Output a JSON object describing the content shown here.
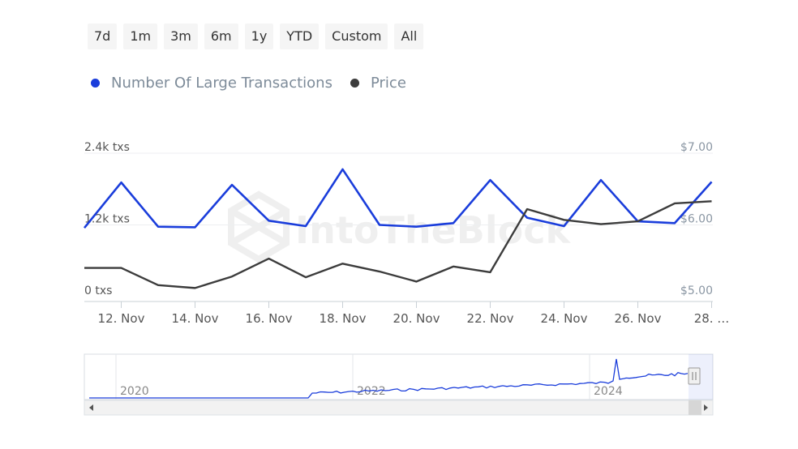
{
  "range_buttons": [
    "7d",
    "1m",
    "3m",
    "6m",
    "1y",
    "YTD",
    "Custom",
    "All"
  ],
  "legend": [
    {
      "label": "Number Of Large Transactions",
      "color": "#1a3ddb"
    },
    {
      "label": "Price",
      "color": "#3c3c3c"
    }
  ],
  "watermark": "IntoTheBlock",
  "chart_data": {
    "type": "line",
    "x": [
      "11 Nov",
      "12 Nov",
      "13 Nov",
      "14 Nov",
      "15 Nov",
      "16 Nov",
      "17 Nov",
      "18 Nov",
      "19 Nov",
      "20 Nov",
      "21 Nov",
      "22 Nov",
      "23 Nov",
      "24 Nov",
      "25 Nov",
      "26 Nov",
      "27 Nov",
      "28 Nov"
    ],
    "x_tick_labels": [
      "12. Nov",
      "14. Nov",
      "16. Nov",
      "18. Nov",
      "20. Nov",
      "22. Nov",
      "24. Nov",
      "26. Nov",
      "28. …"
    ],
    "series": [
      {
        "name": "Number Of Large Transactions",
        "axis": "left",
        "color": "#1a3ddb",
        "values": [
          1150,
          1910,
          1170,
          1160,
          1870,
          1270,
          1180,
          2130,
          1200,
          1170,
          1230,
          1950,
          1320,
          1180,
          1950,
          1260,
          1230,
          1920
        ]
      },
      {
        "name": "Price",
        "axis": "right",
        "color": "#3c3c3c",
        "values": [
          5.4,
          5.4,
          5.16,
          5.12,
          5.28,
          5.53,
          5.27,
          5.46,
          5.35,
          5.21,
          5.42,
          5.34,
          6.22,
          6.07,
          6.01,
          6.05,
          6.3,
          6.33
        ]
      }
    ],
    "y_left": {
      "ticks": [
        "2.4k txs",
        "1.2k txs",
        "0 txs"
      ],
      "range": [
        0,
        2400
      ]
    },
    "y_right": {
      "ticks": [
        "$7.00",
        "$6.00",
        "$5.00"
      ],
      "range": [
        5.0,
        7.0
      ]
    },
    "navigator": {
      "year_labels": [
        "2020",
        "2022",
        "2024"
      ]
    },
    "grid": true,
    "legend_position": "top-left"
  }
}
